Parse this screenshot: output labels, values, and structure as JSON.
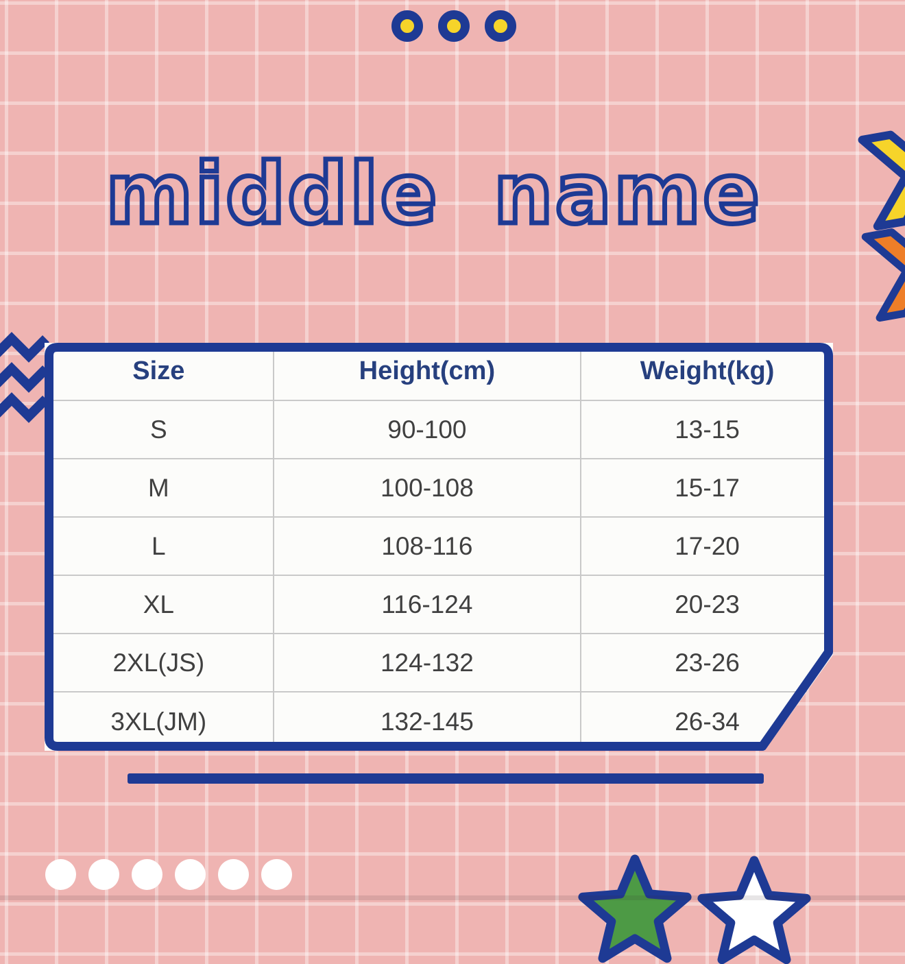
{
  "page": {
    "background_color": "#efb4b2",
    "accent_navy": "#1e3a94",
    "colors": {
      "yellow": "#f6d42a",
      "orange": "#ee7e28",
      "green": "#4d9a45",
      "white": "#ffffff",
      "table_bg": "#fcfcfa",
      "cell_border": "#c9c9c9",
      "header_text": "#27407e",
      "data_text": "#404040"
    }
  },
  "title": {
    "text": "middle name"
  },
  "decorations": {
    "top_dots_count": 3,
    "bottom_dots_count": 6,
    "icons": [
      "ring-dot-icon",
      "zigzag-icon",
      "chevron-right-icon",
      "star-icon",
      "underline-bar"
    ]
  },
  "chart_data": {
    "type": "table",
    "title": "middle name",
    "columns": [
      "Size",
      "Height(cm)",
      "Weight(kg)"
    ],
    "rows": [
      [
        "S",
        "90-100",
        "13-15"
      ],
      [
        "M",
        "100-108",
        "15-17"
      ],
      [
        "L",
        "108-116",
        "17-20"
      ],
      [
        "XL",
        "116-124",
        "20-23"
      ],
      [
        "2XL(JS)",
        "124-132",
        "23-26"
      ],
      [
        "3XL(JM)",
        "132-145",
        "26-34"
      ]
    ]
  }
}
